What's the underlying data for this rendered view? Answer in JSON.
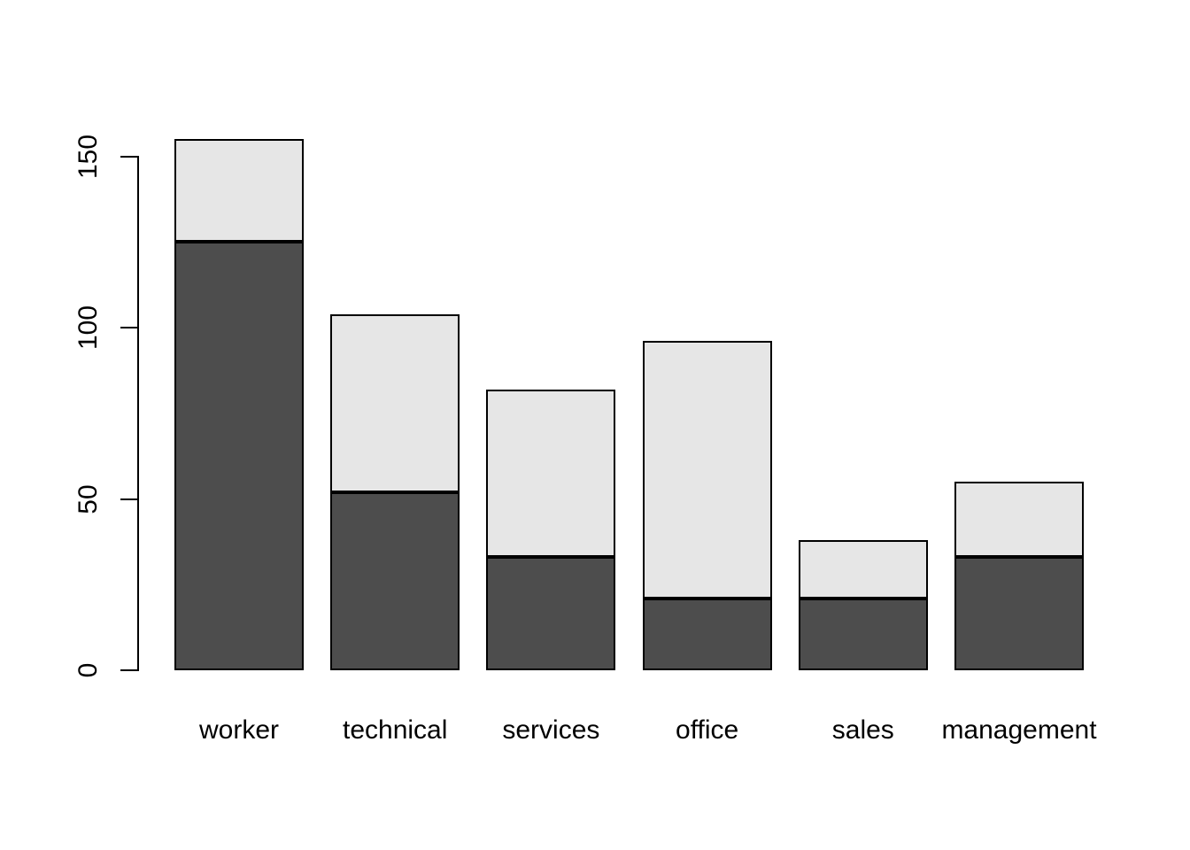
{
  "chart_data": {
    "type": "bar",
    "stacked": true,
    "title": "",
    "xlabel": "",
    "ylabel": "",
    "categories": [
      "worker",
      "technical",
      "services",
      "office",
      "sales",
      "management"
    ],
    "series": [
      {
        "name": "bottom-segment-dark",
        "color": "#4D4D4D",
        "values": [
          125,
          52,
          33,
          21,
          21,
          33
        ]
      },
      {
        "name": "top-segment-light",
        "color": "#E6E6E6",
        "values": [
          30,
          52,
          49,
          75,
          17,
          22
        ]
      }
    ],
    "stack_totals": [
      155,
      104,
      82,
      96,
      38,
      55
    ],
    "ylim": [
      0,
      150
    ],
    "yticks": [
      0,
      50,
      100,
      150
    ],
    "ytick_labels": [
      "0",
      "50",
      "100",
      "150"
    ],
    "grid": false,
    "legend": "none",
    "bar_border_color": "#000000",
    "axis_color": "#000000",
    "background_color": "#FFFFFF"
  }
}
